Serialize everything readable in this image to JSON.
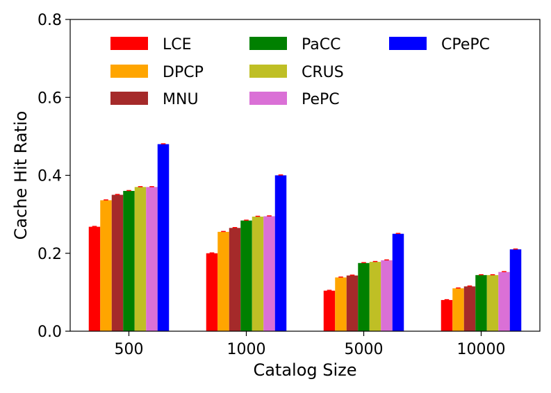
{
  "chart_data": {
    "type": "bar",
    "title": "",
    "xlabel": "Catalog Size",
    "ylabel": "Cache Hit Ratio",
    "categories": [
      "500",
      "1000",
      "5000",
      "10000"
    ],
    "ylim": [
      0,
      0.8
    ],
    "yticks": [
      "0.0",
      "0.2",
      "0.4",
      "0.6",
      "0.8"
    ],
    "legend_position": "top (3 columns)",
    "series": [
      {
        "name": "LCE",
        "color": "#ff0000",
        "values": [
          0.268,
          0.2,
          0.104,
          0.08
        ]
      },
      {
        "name": "DPCP",
        "color": "#ffa500",
        "values": [
          0.336,
          0.255,
          0.138,
          0.11
        ]
      },
      {
        "name": "MNU",
        "color": "#a52a2a",
        "values": [
          0.35,
          0.265,
          0.143,
          0.115
        ]
      },
      {
        "name": "PaCC",
        "color": "#008000",
        "values": [
          0.36,
          0.284,
          0.175,
          0.144
        ]
      },
      {
        "name": "CRUS",
        "color": "#bfbf25",
        "values": [
          0.37,
          0.294,
          0.178,
          0.144
        ]
      },
      {
        "name": "PePC",
        "color": "#da70d6",
        "values": [
          0.37,
          0.295,
          0.182,
          0.152
        ]
      },
      {
        "name": "CPePC",
        "color": "#0000ff",
        "values": [
          0.48,
          0.4,
          0.25,
          0.21
        ]
      }
    ],
    "errorbar_color": "#ff0000"
  }
}
